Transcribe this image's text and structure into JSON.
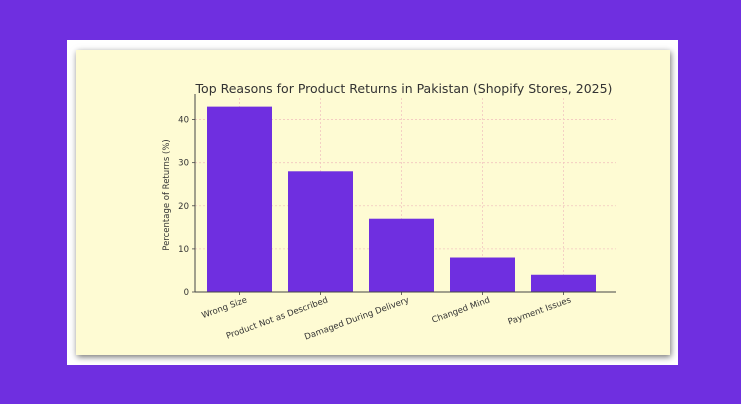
{
  "chart_data": {
    "type": "bar",
    "title": "Top Reasons for Product Returns in Pakistan (Shopify Stores, 2025)",
    "xlabel": "",
    "ylabel": "Percentage of Returns (%)",
    "categories": [
      "Wrong Size",
      "Product Not as Described",
      "Damaged During Delivery",
      "Changed Mind",
      "Payment Issues"
    ],
    "values": [
      43,
      28,
      17,
      8,
      4
    ],
    "ylim": [
      0,
      45
    ],
    "yticks": [
      0,
      10,
      20,
      30,
      40
    ],
    "grid": true,
    "bar_color": "#6f2fe0",
    "grid_color": "#f2c6c0"
  },
  "colors": {
    "background": "#6f2fe0",
    "frame": "#ffffff",
    "plot_background": "#fefbd3"
  }
}
